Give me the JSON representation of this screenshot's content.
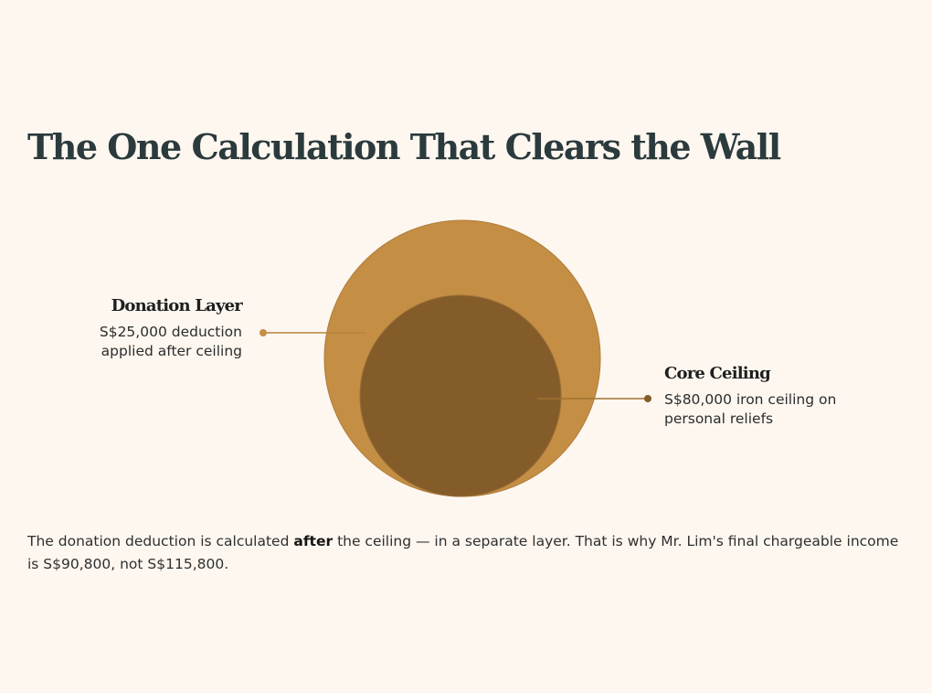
{
  "title": "The One Calculation That Clears the Wall",
  "colors": {
    "background": "#fdf7f0",
    "outer_circle": "#c48e44",
    "inner_circle": "#845c2a",
    "title": "#2b3a3c"
  },
  "layers": {
    "donation": {
      "heading": "Donation Layer",
      "desc_line1": "S$25,000 deduction",
      "desc_line2": "applied after ceiling"
    },
    "core": {
      "heading": "Core Ceiling",
      "desc_line1": "S$80,000 iron ceiling on",
      "desc_line2": "personal reliefs"
    }
  },
  "caption": {
    "before": "The donation deduction is calculated ",
    "emphasis": "after",
    "after": " the ceiling — in a separate layer. That is why Mr. Lim's final chargeable income is S$90,800, not S$115,800."
  }
}
